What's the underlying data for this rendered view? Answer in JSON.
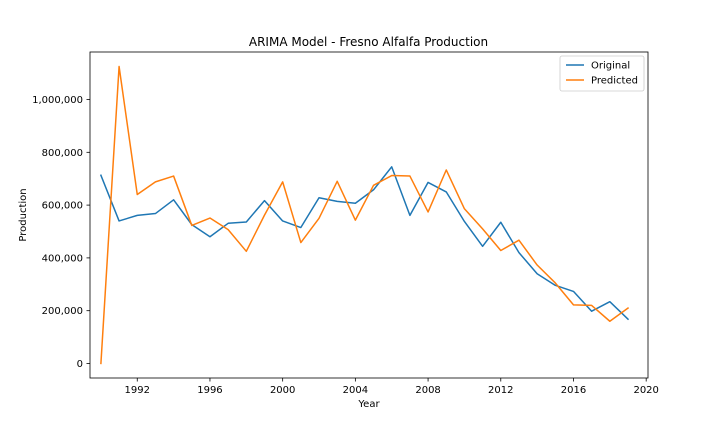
{
  "chart_data": {
    "type": "line",
    "title": "ARIMA Model - Fresno Alfalfa Production",
    "xlabel": "Year",
    "ylabel": "Production",
    "xlim": [
      1989.4,
      2020.1
    ],
    "ylim": [
      -55000,
      1180000
    ],
    "xticks": [
      1992,
      1996,
      2000,
      2004,
      2008,
      2012,
      2016,
      2020
    ],
    "xtick_labels": [
      "1992",
      "1996",
      "2000",
      "2004",
      "2008",
      "2012",
      "2016",
      "2020"
    ],
    "yticks": [
      0,
      200000,
      400000,
      600000,
      800000,
      1000000
    ],
    "ytick_labels": [
      "0",
      "200,000",
      "400,000",
      "600,000",
      "800,000",
      "1,000,000"
    ],
    "grid": false,
    "legend_position": "top-right",
    "x": [
      1990,
      1991,
      1992,
      1993,
      1994,
      1995,
      1996,
      1997,
      1998,
      1999,
      2000,
      2001,
      2002,
      2003,
      2004,
      2005,
      2006,
      2007,
      2008,
      2009,
      2010,
      2011,
      2012,
      2013,
      2014,
      2015,
      2016,
      2017,
      2018,
      2019
    ],
    "series": [
      {
        "name": "Original",
        "color": "#1f77b4",
        "values": [
          713000,
          540000,
          561000,
          568000,
          620000,
          526000,
          480000,
          531000,
          536000,
          617000,
          540000,
          515000,
          628000,
          614000,
          607000,
          658000,
          745000,
          561000,
          686000,
          650000,
          538000,
          444000,
          535000,
          420000,
          340000,
          296000,
          273000,
          198000,
          234000,
          168000
        ]
      },
      {
        "name": "Predicted",
        "color": "#ff7f0e",
        "values": [
          0,
          1125000,
          640000,
          688000,
          710000,
          523000,
          551000,
          507000,
          425000,
          562000,
          688000,
          458000,
          550000,
          690000,
          543000,
          675000,
          712000,
          710000,
          574000,
          733000,
          586000,
          510000,
          428000,
          467000,
          373000,
          305000,
          222000,
          220000,
          160000,
          210000
        ]
      }
    ]
  }
}
